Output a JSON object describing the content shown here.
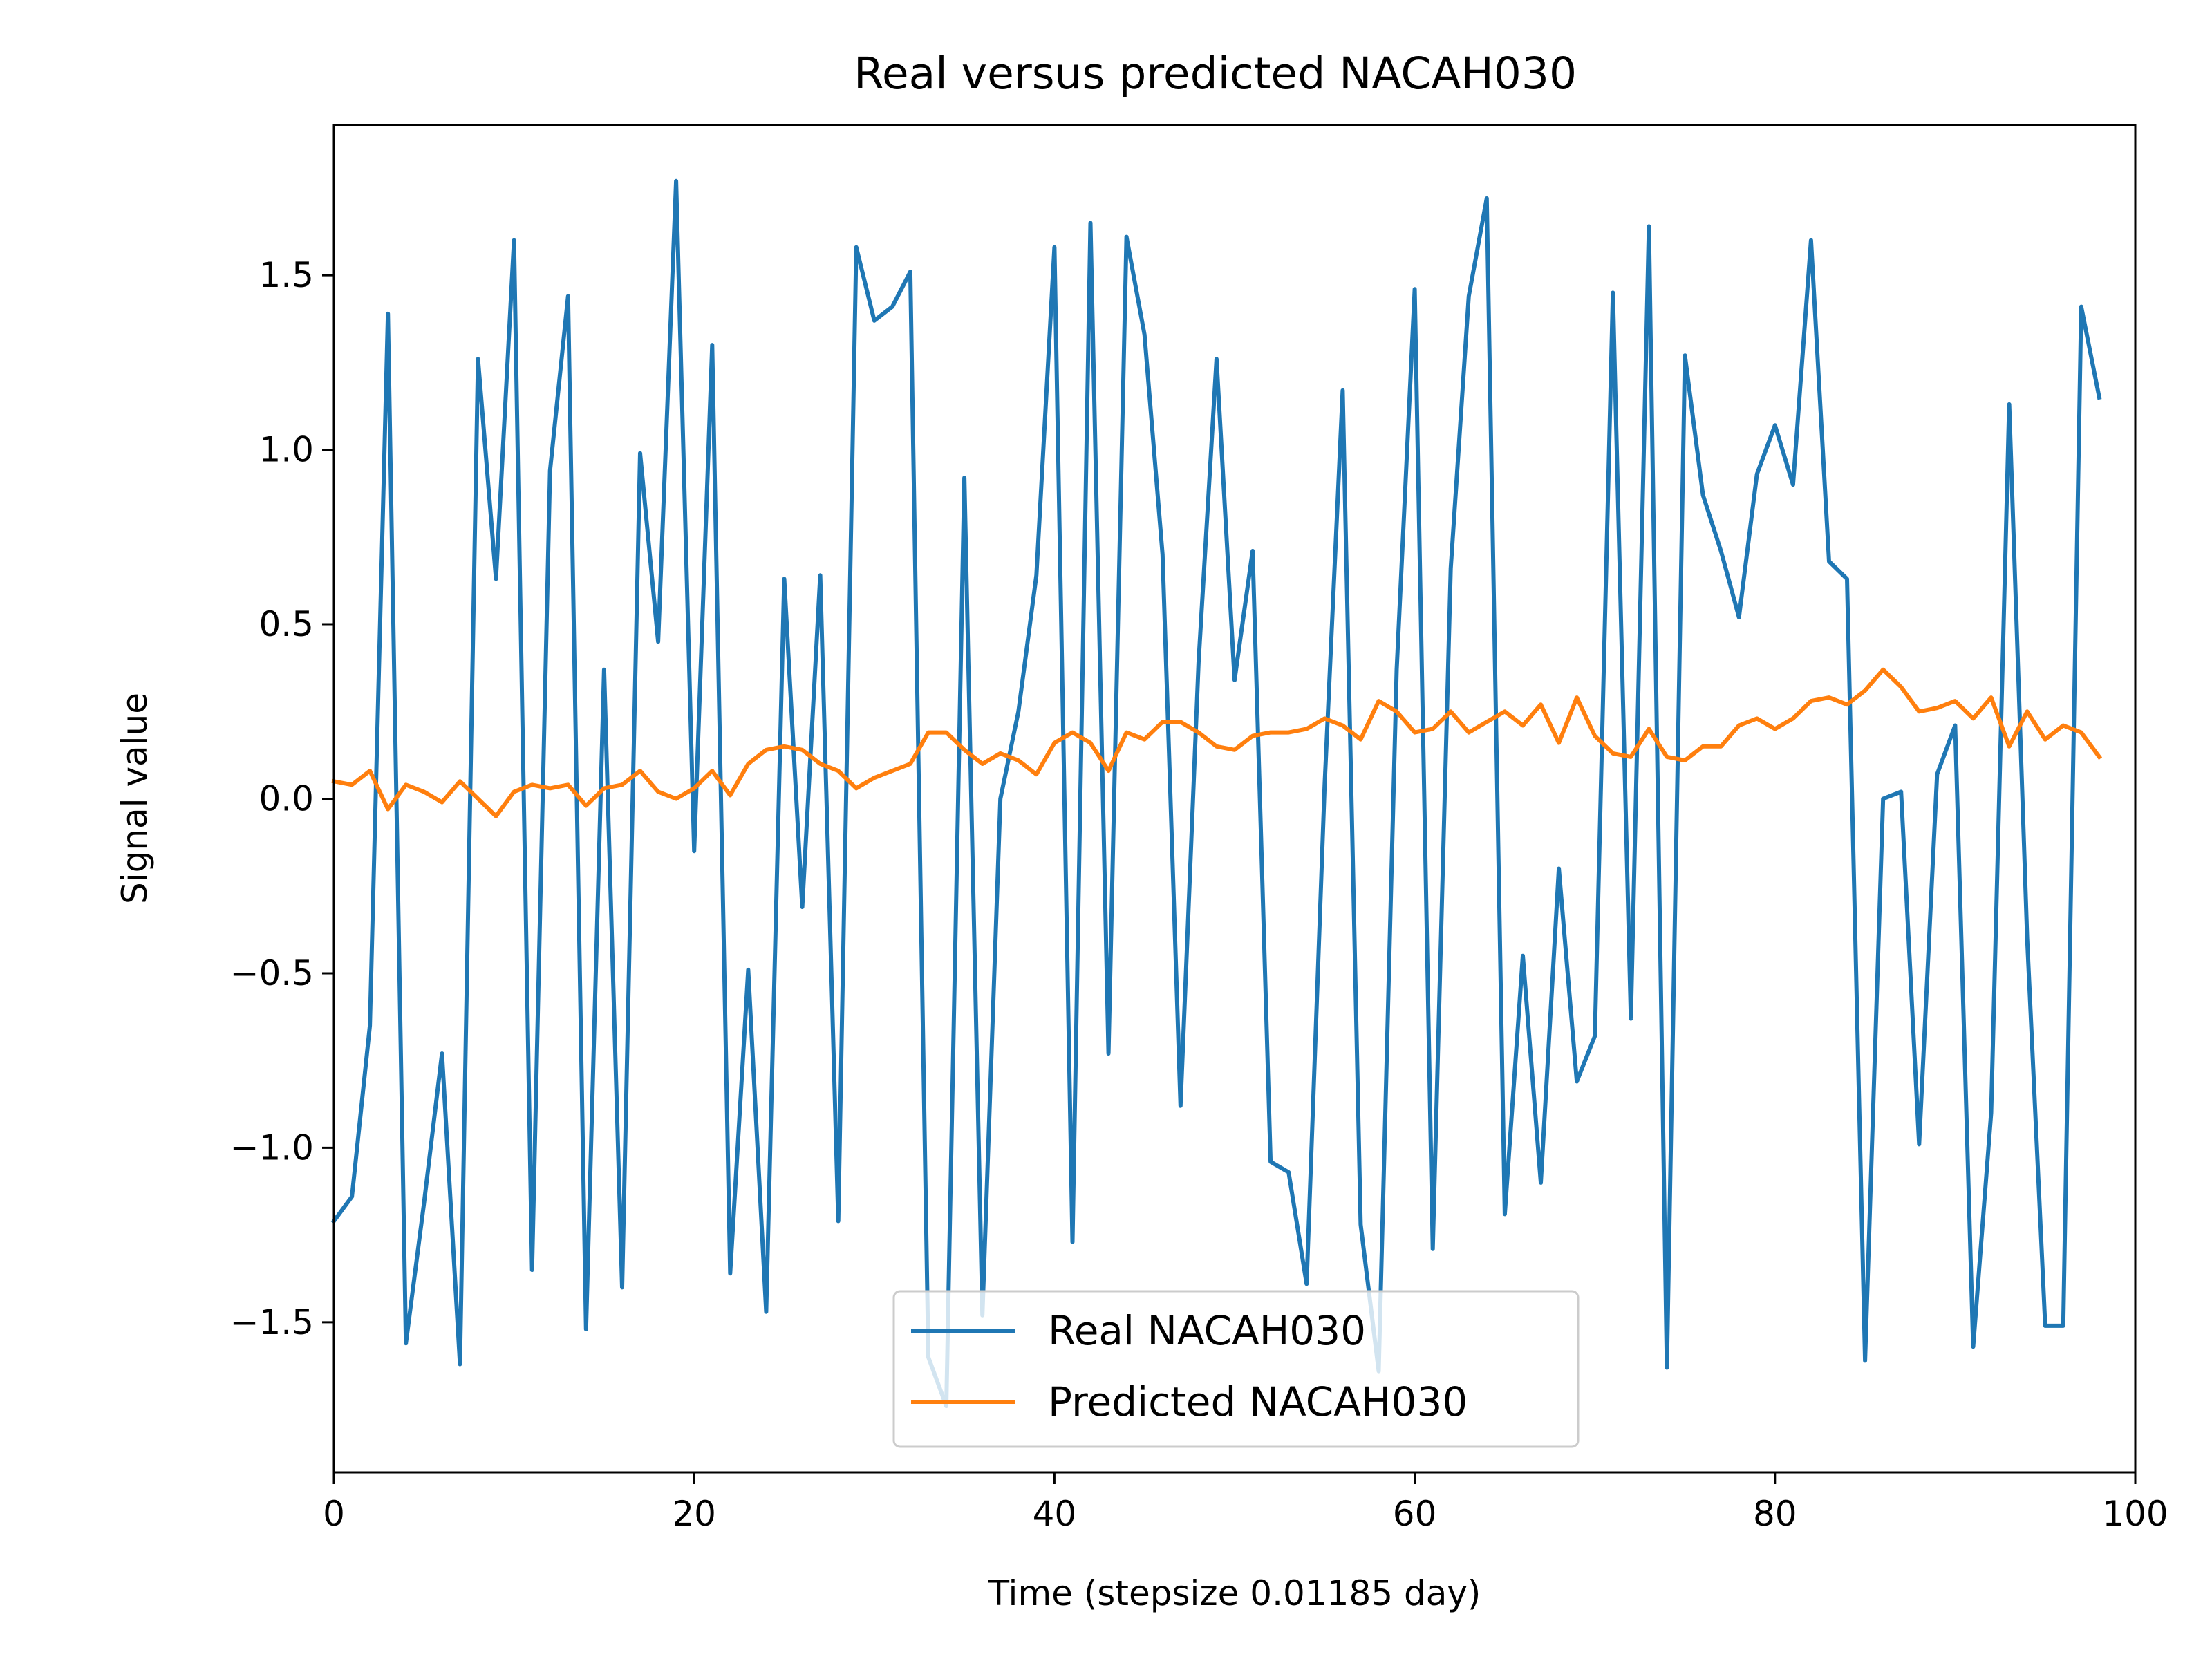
{
  "chart_data": {
    "type": "line",
    "title": "Real versus predicted NACAH030",
    "xlabel": "Time (stepsize 0.01185 day)",
    "ylabel": "Signal value",
    "xlim": [
      0,
      100
    ],
    "ylim": [
      -1.93,
      1.93
    ],
    "xticks": [
      0,
      20,
      40,
      60,
      80,
      100
    ],
    "xtick_labels": [
      "0",
      "20",
      "40",
      "60",
      "80",
      "100"
    ],
    "yticks": [
      -1.5,
      -1.0,
      -0.5,
      0.0,
      0.5,
      1.0,
      1.5
    ],
    "ytick_labels": [
      "−1.5",
      "−1.0",
      "−0.5",
      "0.0",
      "0.5",
      "1.0",
      "1.5"
    ],
    "grid": false,
    "legend_position": "bottom-center",
    "x": [
      0,
      1,
      2,
      3,
      4,
      5,
      6,
      7,
      8,
      9,
      10,
      11,
      12,
      13,
      14,
      15,
      16,
      17,
      18,
      19,
      20,
      21,
      22,
      23,
      24,
      25,
      26,
      27,
      28,
      29,
      30,
      31,
      32,
      33,
      34,
      35,
      36,
      37,
      38,
      39,
      40,
      41,
      42,
      43,
      44,
      45,
      46,
      47,
      48,
      49,
      50,
      51,
      52,
      53,
      54,
      55,
      56,
      57,
      58,
      59,
      60,
      61,
      62,
      63,
      64,
      65,
      66,
      67,
      68,
      69,
      70,
      71,
      72,
      73,
      74,
      75,
      76,
      77,
      78,
      79,
      80,
      81,
      82,
      83,
      84,
      85,
      86,
      87,
      88,
      89,
      90,
      91,
      92,
      93,
      94,
      95,
      96,
      97,
      98
    ],
    "series": [
      {
        "name": "Real NACAH030",
        "color": "#1f77b4",
        "values": [
          -1.21,
          -1.14,
          -0.65,
          1.39,
          -1.56,
          -1.16,
          -0.73,
          -1.62,
          1.26,
          0.63,
          1.6,
          -1.35,
          0.94,
          1.44,
          -1.52,
          0.37,
          -1.4,
          0.99,
          0.45,
          1.77,
          -0.15,
          1.3,
          -1.36,
          -0.49,
          -1.47,
          0.63,
          -0.31,
          0.64,
          -1.21,
          1.58,
          1.37,
          1.41,
          1.51,
          -1.6,
          -1.74,
          0.92,
          -1.48,
          0.0,
          0.25,
          0.64,
          1.58,
          -1.27,
          1.65,
          -0.73,
          1.61,
          1.33,
          0.7,
          -0.88,
          0.39,
          1.26,
          0.34,
          0.71,
          -1.04,
          -1.07,
          -1.39,
          0.04,
          1.17,
          -1.22,
          -1.64,
          0.37,
          1.46,
          -1.29,
          0.66,
          1.44,
          1.72,
          -1.19,
          -0.45,
          -1.1,
          -0.2,
          -0.81,
          -0.68,
          1.45,
          -0.63,
          1.64,
          -1.63,
          1.27,
          0.87,
          0.71,
          0.52,
          0.93,
          1.07,
          0.9,
          1.6,
          0.68,
          0.63,
          -1.61,
          0.0,
          0.02,
          -0.99,
          0.07,
          0.21,
          -1.57,
          -0.9,
          1.13,
          -0.4,
          -1.51,
          -1.51,
          1.41,
          1.15
        ]
      },
      {
        "name": "Predicted NACAH030",
        "color": "#ff7f0e",
        "values": [
          0.05,
          0.04,
          0.08,
          -0.03,
          0.04,
          0.02,
          -0.01,
          0.05,
          0.0,
          -0.05,
          0.02,
          0.04,
          0.03,
          0.04,
          -0.02,
          0.03,
          0.04,
          0.08,
          0.02,
          0.0,
          0.03,
          0.08,
          0.01,
          0.1,
          0.14,
          0.15,
          0.14,
          0.1,
          0.08,
          0.03,
          0.06,
          0.08,
          0.1,
          0.19,
          0.19,
          0.14,
          0.1,
          0.13,
          0.11,
          0.07,
          0.16,
          0.19,
          0.16,
          0.08,
          0.19,
          0.17,
          0.22,
          0.22,
          0.19,
          0.15,
          0.14,
          0.18,
          0.19,
          0.19,
          0.2,
          0.23,
          0.21,
          0.17,
          0.28,
          0.25,
          0.19,
          0.2,
          0.25,
          0.19,
          0.22,
          0.25,
          0.21,
          0.27,
          0.16,
          0.29,
          0.18,
          0.13,
          0.12,
          0.2,
          0.12,
          0.11,
          0.15,
          0.15,
          0.21,
          0.23,
          0.2,
          0.23,
          0.28,
          0.29,
          0.27,
          0.31,
          0.37,
          0.32,
          0.25,
          0.26,
          0.28,
          0.23,
          0.29,
          0.15,
          0.25,
          0.17,
          0.21,
          0.19,
          0.12
        ]
      }
    ]
  }
}
